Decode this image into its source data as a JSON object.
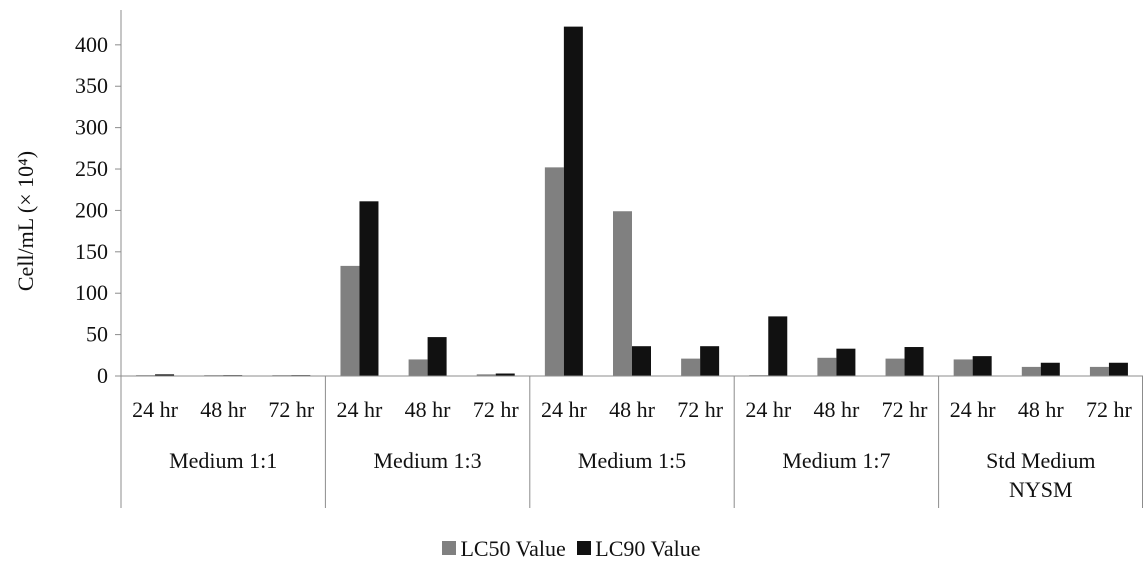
{
  "chart_data": {
    "type": "bar",
    "title": "",
    "xlabel": "",
    "ylabel": "Cell/mL (× 10⁴)",
    "ylim": [
      0,
      430
    ],
    "yticks": [
      0,
      50,
      100,
      150,
      200,
      250,
      300,
      350,
      400
    ],
    "grid": false,
    "legend_position": "bottom",
    "groups": [
      {
        "label": "Medium 1:1",
        "categories": [
          "24 hr",
          "48 hr",
          "72 hr"
        ]
      },
      {
        "label": "Medium 1:3",
        "categories": [
          "24 hr",
          "48 hr",
          "72 hr"
        ]
      },
      {
        "label": "Medium 1:5",
        "categories": [
          "24 hr",
          "48 hr",
          "72 hr"
        ]
      },
      {
        "label": "Medium 1:7",
        "categories": [
          "24 hr",
          "48 hr",
          "72 hr"
        ]
      },
      {
        "label": "Std Medium NYSM",
        "categories": [
          "24 hr",
          "48 hr",
          "72 hr"
        ]
      }
    ],
    "series": [
      {
        "name": "LC50 Value",
        "color": "#808080",
        "values": [
          1,
          1,
          1,
          133,
          20,
          2,
          252,
          199,
          21,
          1,
          22,
          21,
          20,
          11,
          11
        ]
      },
      {
        "name": "LC90 Value",
        "color": "#111111",
        "values": [
          2,
          1,
          1,
          211,
          47,
          3,
          422,
          36,
          36,
          72,
          33,
          35,
          24,
          16,
          16
        ]
      }
    ]
  }
}
